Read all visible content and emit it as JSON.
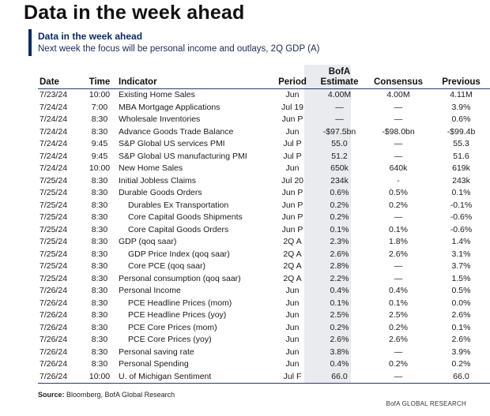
{
  "headline": "Data in the week ahead",
  "panel": {
    "title": "Data in the week ahead",
    "subtitle": "Next week the focus will be personal income and outlays, 2Q GDP (A)"
  },
  "columns": {
    "date": "Date",
    "time": "Time",
    "indicator": "Indicator",
    "period": "Period",
    "estimate_line1": "BofA",
    "estimate_line2": "Estimate",
    "consensus": "Consensus",
    "previous": "Previous"
  },
  "rows": [
    {
      "date": "7/23/24",
      "time": "10:00",
      "indicator": "Existing Home Sales",
      "indent": false,
      "period": "Jun",
      "estimate": "4.00M",
      "consensus": "4.00M",
      "previous": "4.11M"
    },
    {
      "date": "7/24/24",
      "time": "7:00",
      "indicator": "MBA Mortgage Applications",
      "indent": false,
      "period": "Jul 19",
      "estimate": "—",
      "consensus": "—",
      "previous": "3.9%"
    },
    {
      "date": "7/24/24",
      "time": "8:30",
      "indicator": "Wholesale Inventories",
      "indent": false,
      "period": "Jun P",
      "estimate": "—",
      "consensus": "—",
      "previous": "0.6%"
    },
    {
      "date": "7/24/24",
      "time": "8:30",
      "indicator": "Advance Goods Trade Balance",
      "indent": false,
      "period": "Jun",
      "estimate": "-$97.5bn",
      "consensus": "-$98.0bn",
      "previous": "-$99.4b"
    },
    {
      "date": "7/24/24",
      "time": "9:45",
      "indicator": "S&P Global US services PMI",
      "indent": false,
      "period": "Jul P",
      "estimate": "55.0",
      "consensus": "—",
      "previous": "55.3"
    },
    {
      "date": "7/24/24",
      "time": "9:45",
      "indicator": "S&P Global US manufacturing PMI",
      "indent": false,
      "period": "Jul P",
      "estimate": "51.2",
      "consensus": "—",
      "previous": "51.6"
    },
    {
      "date": "7/24/24",
      "time": "10:00",
      "indicator": "New Home Sales",
      "indent": false,
      "period": "Jun",
      "estimate": "650k",
      "consensus": "640k",
      "previous": "619k"
    },
    {
      "date": "7/25/24",
      "time": "8:30",
      "indicator": "Initial Jobless Claims",
      "indent": false,
      "period": "Jul 20",
      "estimate": "234k",
      "consensus": "-",
      "previous": "243k"
    },
    {
      "date": "7/25/24",
      "time": "8:30",
      "indicator": "Durable Goods Orders",
      "indent": false,
      "period": "Jun P",
      "estimate": "0.6%",
      "consensus": "0.5%",
      "previous": "0.1%"
    },
    {
      "date": "7/25/24",
      "time": "8:30",
      "indicator": "Durables Ex Transportation",
      "indent": true,
      "period": "Jun P",
      "estimate": "0.2%",
      "consensus": "0.2%",
      "previous": "-0.1%"
    },
    {
      "date": "7/25/24",
      "time": "8:30",
      "indicator": "Core Capital Goods Shipments",
      "indent": true,
      "period": "Jun P",
      "estimate": "0.2%",
      "consensus": "—",
      "previous": "-0.6%"
    },
    {
      "date": "7/25/24",
      "time": "8:30",
      "indicator": "Core Capital Goods Orders",
      "indent": true,
      "period": "Jun P",
      "estimate": "0.1%",
      "consensus": "0.1%",
      "previous": "-0.6%"
    },
    {
      "date": "7/25/24",
      "time": "8:30",
      "indicator": "GDP (qoq saar)",
      "indent": false,
      "period": "2Q A",
      "estimate": "2.3%",
      "consensus": "1.8%",
      "previous": "1.4%"
    },
    {
      "date": "7/25/24",
      "time": "8:30",
      "indicator": "GDP Price Index (qoq saar)",
      "indent": true,
      "period": "2Q A",
      "estimate": "2.6%",
      "consensus": "2.6%",
      "previous": "3.1%"
    },
    {
      "date": "7/25/24",
      "time": "8:30",
      "indicator": "Core PCE (qoq saar)",
      "indent": true,
      "period": "2Q A",
      "estimate": "2.8%",
      "consensus": "—",
      "previous": "3.7%"
    },
    {
      "date": "7/25/24",
      "time": "8:30",
      "indicator": "Personal consumption (qoq saar)",
      "indent": false,
      "period": "2Q A",
      "estimate": "2.2%",
      "consensus": "—",
      "previous": "1.5%"
    },
    {
      "date": "7/26/24",
      "time": "8:30",
      "indicator": "Personal Income",
      "indent": false,
      "period": "Jun",
      "estimate": "0.4%",
      "consensus": "0.4%",
      "previous": "0.5%"
    },
    {
      "date": "7/26/24",
      "time": "8:30",
      "indicator": "PCE Headline Prices (mom)",
      "indent": true,
      "period": "Jun",
      "estimate": "0.1%",
      "consensus": "0.1%",
      "previous": "0.0%"
    },
    {
      "date": "7/26/24",
      "time": "8:30",
      "indicator": "PCE Headline Prices (yoy)",
      "indent": true,
      "period": "Jun",
      "estimate": "2.5%",
      "consensus": "2.5%",
      "previous": "2.6%"
    },
    {
      "date": "7/26/24",
      "time": "8:30",
      "indicator": "PCE Core Prices (mom)",
      "indent": true,
      "period": "Jun",
      "estimate": "0.2%",
      "consensus": "0.2%",
      "previous": "0.1%"
    },
    {
      "date": "7/26/24",
      "time": "8:30",
      "indicator": "PCE Core Prices (yoy)",
      "indent": true,
      "period": "Jun",
      "estimate": "2.6%",
      "consensus": "2.6%",
      "previous": "2.6%"
    },
    {
      "date": "7/26/24",
      "time": "8:30",
      "indicator": "Personal saving rate",
      "indent": false,
      "period": "Jun",
      "estimate": "3.8%",
      "consensus": "—",
      "previous": "3.9%"
    },
    {
      "date": "7/26/24",
      "time": "8:30",
      "indicator": "Personal Spending",
      "indent": false,
      "period": "Jun",
      "estimate": "0.4%",
      "consensus": "0.2%",
      "previous": "0.2%"
    },
    {
      "date": "7/26/24",
      "time": "10:00",
      "indicator": "U. of Michigan Sentiment",
      "indent": false,
      "period": "Jul F",
      "estimate": "66.0",
      "consensus": "—",
      "previous": "66.0"
    }
  ],
  "footer": {
    "source_label": "Source:",
    "source_text": " Bloomberg, BofA Global Research",
    "brand": "BofA GLOBAL RESEARCH"
  },
  "colors": {
    "accent": "#0a2a66",
    "estimate_column_shade": "#e9ebee"
  }
}
